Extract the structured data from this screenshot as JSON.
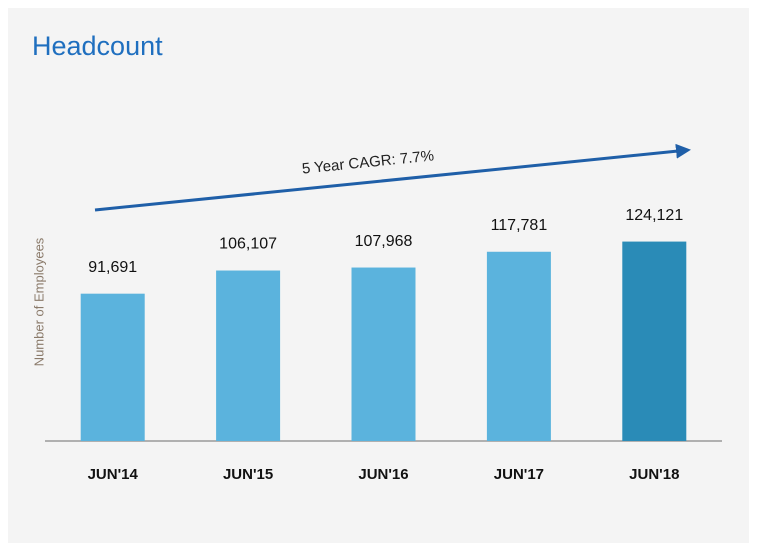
{
  "chart_data": {
    "type": "bar",
    "title": "Headcount",
    "y_label": "Number of Employees",
    "annotation": "5 Year CAGR: 7.7%",
    "categories": [
      "JUN'14",
      "JUN'15",
      "JUN'16",
      "JUN'17",
      "JUN'18"
    ],
    "values": [
      91691,
      106107,
      107968,
      117781,
      124121
    ],
    "value_labels": [
      "91,691",
      "106,107",
      "107,968",
      "117,781",
      "124,121"
    ],
    "colors": [
      "#5bb3dd",
      "#5bb3dd",
      "#5bb3dd",
      "#5bb3dd",
      "#2a8bb7"
    ],
    "ylim": [
      0,
      150000
    ]
  }
}
